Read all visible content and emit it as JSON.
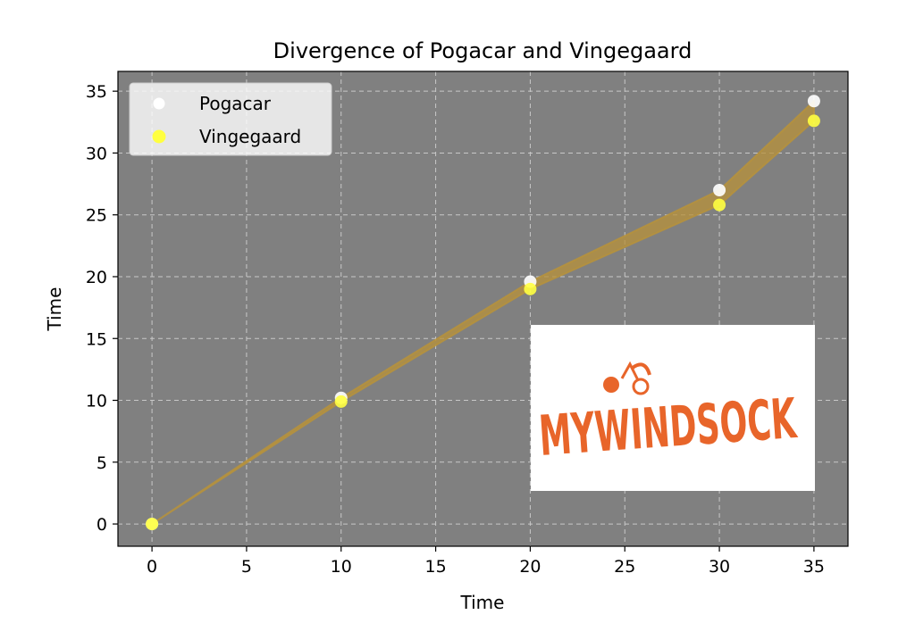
{
  "chart_data": {
    "type": "scatter",
    "title": "Divergence of Pogacar and Vingegaard",
    "xlabel": "Time",
    "ylabel": "Time",
    "xlim": [
      -1.8,
      36.8
    ],
    "ylim": [
      -1.8,
      36.6
    ],
    "xticks": [
      0,
      5,
      10,
      15,
      20,
      25,
      30,
      35
    ],
    "yticks": [
      0,
      5,
      10,
      15,
      20,
      25,
      30,
      35
    ],
    "grid": true,
    "legend_position": "top-left",
    "background_color": "#808080",
    "fill_color": "#b8923a",
    "x": [
      0,
      10,
      20,
      30,
      35
    ],
    "series": [
      {
        "name": "Pogacar",
        "color": "#ffffff",
        "values": [
          0,
          10.2,
          19.6,
          27.0,
          34.2
        ]
      },
      {
        "name": "Vingegaard",
        "color": "#ffff40",
        "values": [
          0,
          9.9,
          19.0,
          25.8,
          32.6
        ]
      }
    ],
    "logo": {
      "name": "mywindsock-logo",
      "text": "MYWINDSOCK",
      "color": "#e8652a"
    }
  }
}
